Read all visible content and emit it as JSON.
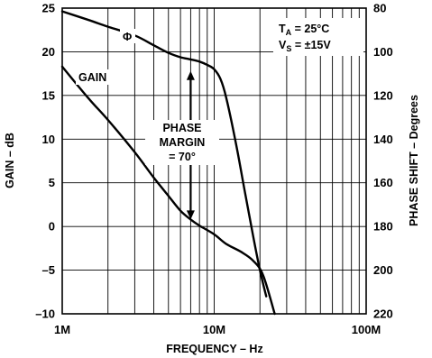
{
  "chart_data": {
    "type": "line",
    "xlabel": "FREQUENCY – Hz",
    "ylabel": "GAIN – dB",
    "y2label": "PHASE SHIFT – Degrees",
    "x_scale": "log",
    "xlim": [
      1000000,
      100000000
    ],
    "x_ticks": [
      {
        "value": 1000000,
        "label": "1M"
      },
      {
        "value": 10000000,
        "label": "10M"
      },
      {
        "value": 100000000,
        "label": "100M"
      }
    ],
    "ylim": [
      -10,
      25
    ],
    "y_ticks": [
      -10,
      -5,
      0,
      5,
      10,
      15,
      20,
      25
    ],
    "y_tick_labels": [
      "–10",
      "–5",
      "0",
      "5",
      "10",
      "15",
      "20",
      "25"
    ],
    "y2lim": [
      220,
      80
    ],
    "y2_ticks": [
      80,
      100,
      120,
      140,
      160,
      180,
      200,
      220
    ],
    "grid": true,
    "series": [
      {
        "name": "GAIN",
        "axis": "left",
        "x": [
          1000000,
          1500000,
          2000000,
          3000000,
          4000000,
          5000000,
          6000000,
          7000000,
          8000000,
          10000000,
          12000000,
          15000000,
          18000000,
          21000000,
          25000000
        ],
        "y": [
          18.3,
          14.6,
          12.2,
          8.5,
          5.6,
          3.5,
          1.8,
          0.8,
          0.1,
          -0.9,
          -2.0,
          -2.9,
          -3.9,
          -5.6,
          -10.0
        ]
      },
      {
        "name": "Φ",
        "axis": "right",
        "x": [
          1000000,
          1500000,
          2000000,
          3000000,
          4000000,
          5000000,
          6000000,
          7000000,
          8000000,
          9000000,
          10000000,
          11000000,
          12000000,
          14000000,
          16000000,
          18000000,
          20000000,
          22000000
        ],
        "y": [
          81.5,
          85.5,
          88.5,
          92.5,
          97.0,
          100.5,
          102.5,
          103.5,
          104.5,
          106.0,
          108.0,
          112.5,
          121.0,
          143.0,
          165.0,
          184.0,
          200.0,
          212.0
        ]
      }
    ],
    "annotations": {
      "conditions_line1": "T",
      "conditions_line1_sub": "A",
      "conditions_line1_value": " = 25°C",
      "conditions_line2": "V",
      "conditions_line2_sub": "S",
      "conditions_line2_value": " = ±15V",
      "phase_margin": [
        "PHASE",
        "MARGIN",
        "= 70°"
      ],
      "phase_margin_x": 7000000,
      "phase_margin_from": 0.8,
      "phase_margin_to": 17.8
    }
  }
}
